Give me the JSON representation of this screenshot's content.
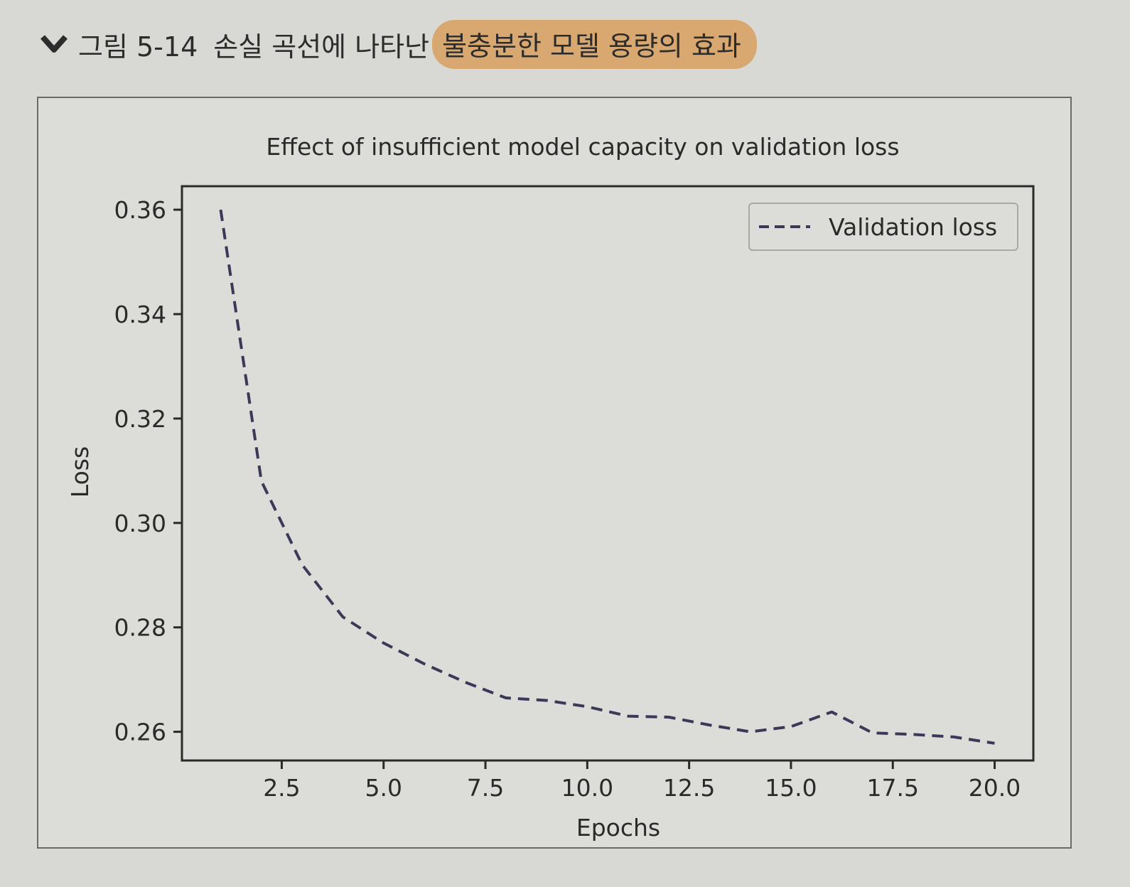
{
  "caption": {
    "figure_label": "그림 5-14",
    "text_before_highlight": "손실 곡선에 나타난",
    "highlighted_text": "불충분한 모델 용량의 효과",
    "accent_color": "#d9a870"
  },
  "chart_data": {
    "type": "line",
    "title": "Effect of insufficient model capacity on validation loss",
    "xlabel": "Epochs",
    "ylabel": "Loss",
    "xlim": [
      0.05,
      20.95
    ],
    "ylim": [
      0.2545,
      0.3645
    ],
    "xticks": [
      2.5,
      5.0,
      7.5,
      10.0,
      12.5,
      15.0,
      17.5,
      20.0
    ],
    "xtick_labels": [
      "2.5",
      "5.0",
      "7.5",
      "10.0",
      "12.5",
      "15.0",
      "17.5",
      "20.0"
    ],
    "yticks": [
      0.26,
      0.28,
      0.3,
      0.32,
      0.34,
      0.36
    ],
    "ytick_labels": [
      "0.26",
      "0.28",
      "0.30",
      "0.32",
      "0.34",
      "0.36"
    ],
    "legend_position": "top-right",
    "series": [
      {
        "name": "Validation loss",
        "line_style": "dashed",
        "color": "#3a3a58",
        "x": [
          1,
          2,
          3,
          4,
          5,
          6,
          7,
          8,
          9,
          10,
          11,
          12,
          13,
          14,
          15,
          16,
          17,
          18,
          19,
          20
        ],
        "values": [
          0.36,
          0.308,
          0.292,
          0.282,
          0.277,
          0.273,
          0.2695,
          0.2665,
          0.266,
          0.2648,
          0.263,
          0.2628,
          0.2613,
          0.26,
          0.261,
          0.2638,
          0.2598,
          0.2595,
          0.259,
          0.2578
        ]
      }
    ]
  }
}
